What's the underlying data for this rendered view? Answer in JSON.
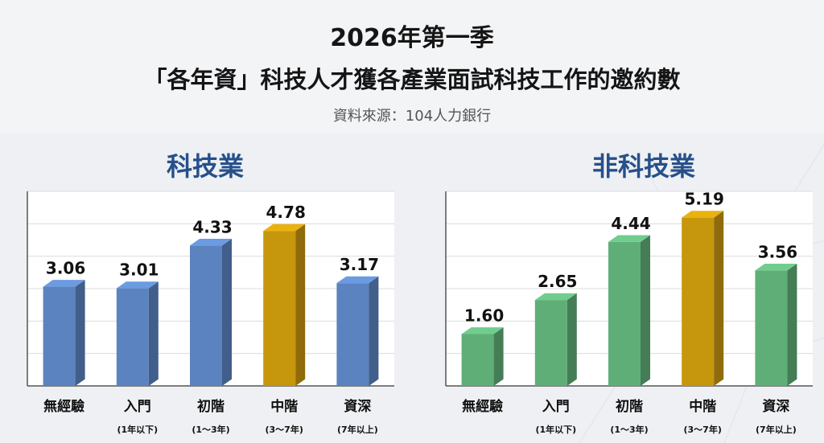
{
  "header": {
    "title_line1": "2026年第一季",
    "title_line2": "「各年資」科技人才獲各產業面試科技工作的邀約數",
    "source": "資料來源：104人力銀行"
  },
  "colors": {
    "tech_bar": "#5b83bf",
    "nontech_bar": "#5fae78",
    "highlight_bar": "#c6960d",
    "panel_title": "#27508a"
  },
  "chart_data": [
    {
      "type": "bar",
      "title": "科技業",
      "categories": [
        "無經驗",
        "入門",
        "初階",
        "中階",
        "資深"
      ],
      "category_sublabels": [
        "",
        "(1年以下)",
        "(1～3年)",
        "(3～7年)",
        "(7年以上)"
      ],
      "values": [
        3.06,
        3.01,
        4.33,
        4.78,
        3.17
      ],
      "value_labels": [
        "3.06",
        "3.01",
        "4.33",
        "4.78",
        "3.17"
      ],
      "highlight_index": 3,
      "ylim": [
        0,
        6
      ],
      "grid": true,
      "axis_tick_labels_shown": false
    },
    {
      "type": "bar",
      "title": "非科技業",
      "categories": [
        "無經驗",
        "入門",
        "初階",
        "中階",
        "資深"
      ],
      "category_sublabels": [
        "",
        "(1年以下)",
        "(1～3年)",
        "(3～7年)",
        "(7年以上)"
      ],
      "values": [
        1.6,
        2.65,
        4.44,
        5.19,
        3.56
      ],
      "value_labels": [
        "1.60",
        "2.65",
        "4.44",
        "5.19",
        "3.56"
      ],
      "highlight_index": 3,
      "ylim": [
        0,
        6
      ],
      "grid": true,
      "axis_tick_labels_shown": false
    }
  ]
}
